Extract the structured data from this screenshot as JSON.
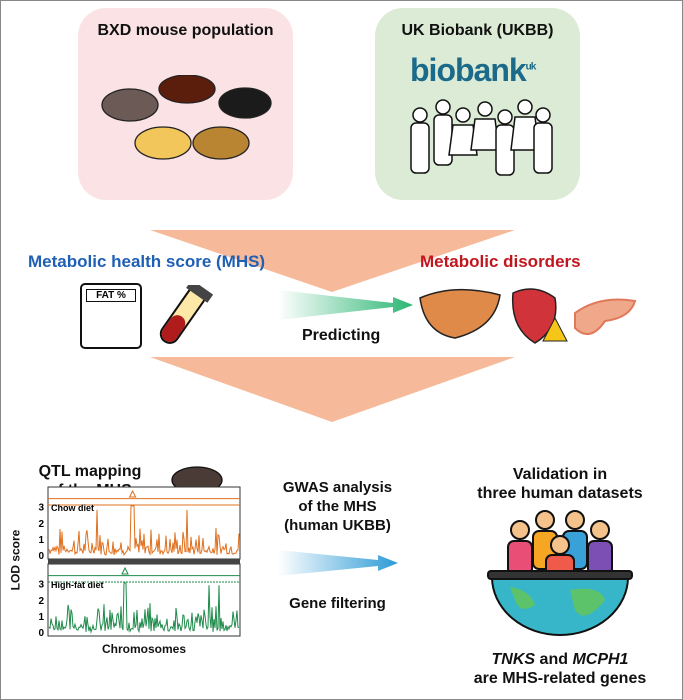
{
  "sources": {
    "mouse": {
      "title": "BXD mouse population",
      "bg": "#fbe3e5"
    },
    "human": {
      "title": "UK Biobank (UKBB)",
      "logo": "biobank",
      "logo_sup": "uk",
      "bg": "#dcebd5",
      "logo_color": "#1c6a8a"
    }
  },
  "predict": {
    "mhs_label": "Metabolic health score (MHS)",
    "mhs_color": "#1f5fb4",
    "disorders_label": "Metabolic disorders",
    "disorders_color": "#c0161e",
    "calculator_label": "FAT %",
    "arrow_label": "Predicting"
  },
  "qtl": {
    "title_line1": "QTL mapping",
    "title_line2": "of the MHS",
    "ylabel": "LOD score",
    "xlabel": "Chromosomes",
    "panels": [
      {
        "label": "Chow diet",
        "color": "#e0701e",
        "ticks": [
          "0",
          "1",
          "2",
          "3"
        ]
      },
      {
        "label": "High-fat diet",
        "color": "#1e8a4a",
        "ticks": [
          "0",
          "1",
          "2",
          "3"
        ]
      }
    ]
  },
  "gwas": {
    "line1": "GWAS analysis",
    "line2": "of the MHS",
    "line3": "(human UKBB)",
    "filter_label": "Gene filtering"
  },
  "validation": {
    "line1": "Validation in",
    "line2": "three human datasets",
    "gene1": "TNKS",
    "and": " and ",
    "gene2": "MCPH1",
    "line4": "are MHS-related genes"
  },
  "colors": {
    "funnel": "#f6b99a",
    "border": "#888888"
  }
}
